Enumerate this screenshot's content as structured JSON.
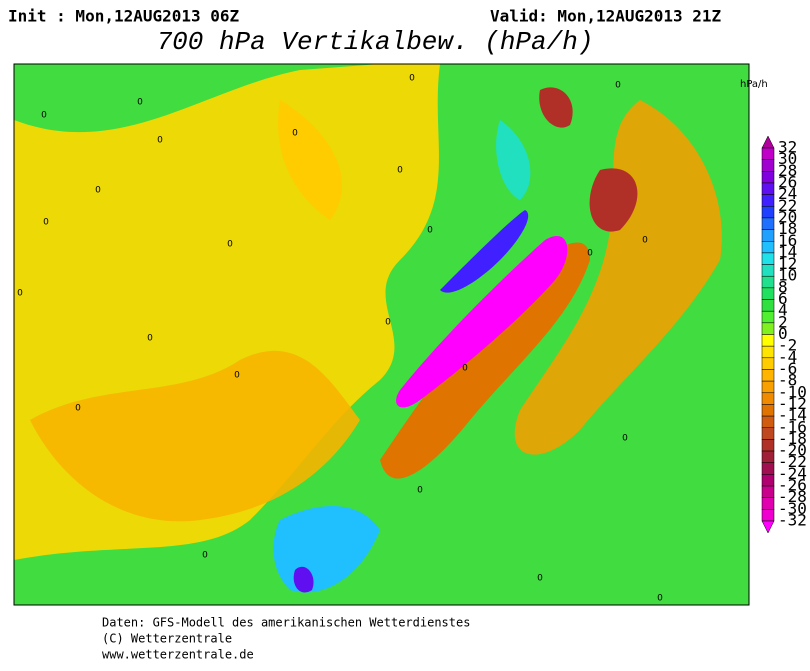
{
  "header": {
    "init": "Init : Mon,12AUG2013 06Z",
    "valid": "Valid: Mon,12AUG2013 21Z",
    "title": "700 hPa Vertikalbew. (hPa/h)"
  },
  "colorbar": {
    "unit": "hPa/h",
    "labels": [
      32,
      30,
      28,
      26,
      24,
      22,
      20,
      18,
      16,
      14,
      12,
      10,
      8,
      6,
      4,
      2,
      0,
      -2,
      -4,
      -6,
      -8,
      -10,
      -12,
      -14,
      -16,
      -18,
      -20,
      -22,
      -24,
      -26,
      -28,
      -30,
      -32
    ],
    "colors": [
      "#b0009c",
      "#c000c8",
      "#a000d0",
      "#8000e0",
      "#6010f0",
      "#4020ff",
      "#2040ff",
      "#2070ff",
      "#20a0ff",
      "#20c0ff",
      "#20e0e8",
      "#20e0c0",
      "#20e090",
      "#20e060",
      "#30e040",
      "#50f030",
      "#80f020",
      "#ffff00",
      "#ffe400",
      "#ffcc00",
      "#ffb400",
      "#f8a000",
      "#f08a00",
      "#e07400",
      "#d05c10",
      "#c04820",
      "#b03028",
      "#a02038",
      "#a01050",
      "#b00070",
      "#c8008c",
      "#e000b0",
      "#f000d0",
      "#ff00ff"
    ]
  },
  "map": {
    "contour_labels": [
      0,
      0,
      0,
      0,
      0,
      0,
      0,
      0,
      0,
      0,
      0,
      0,
      0,
      0,
      0,
      0,
      0,
      0,
      0,
      0,
      0,
      0,
      0,
      0
    ]
  },
  "footer": {
    "lines": [
      "Daten: GFS-Modell des amerikanischen Wetterdienstes",
      "(C) Wetterzentrale",
      "www.wetterzentrale.de"
    ]
  }
}
